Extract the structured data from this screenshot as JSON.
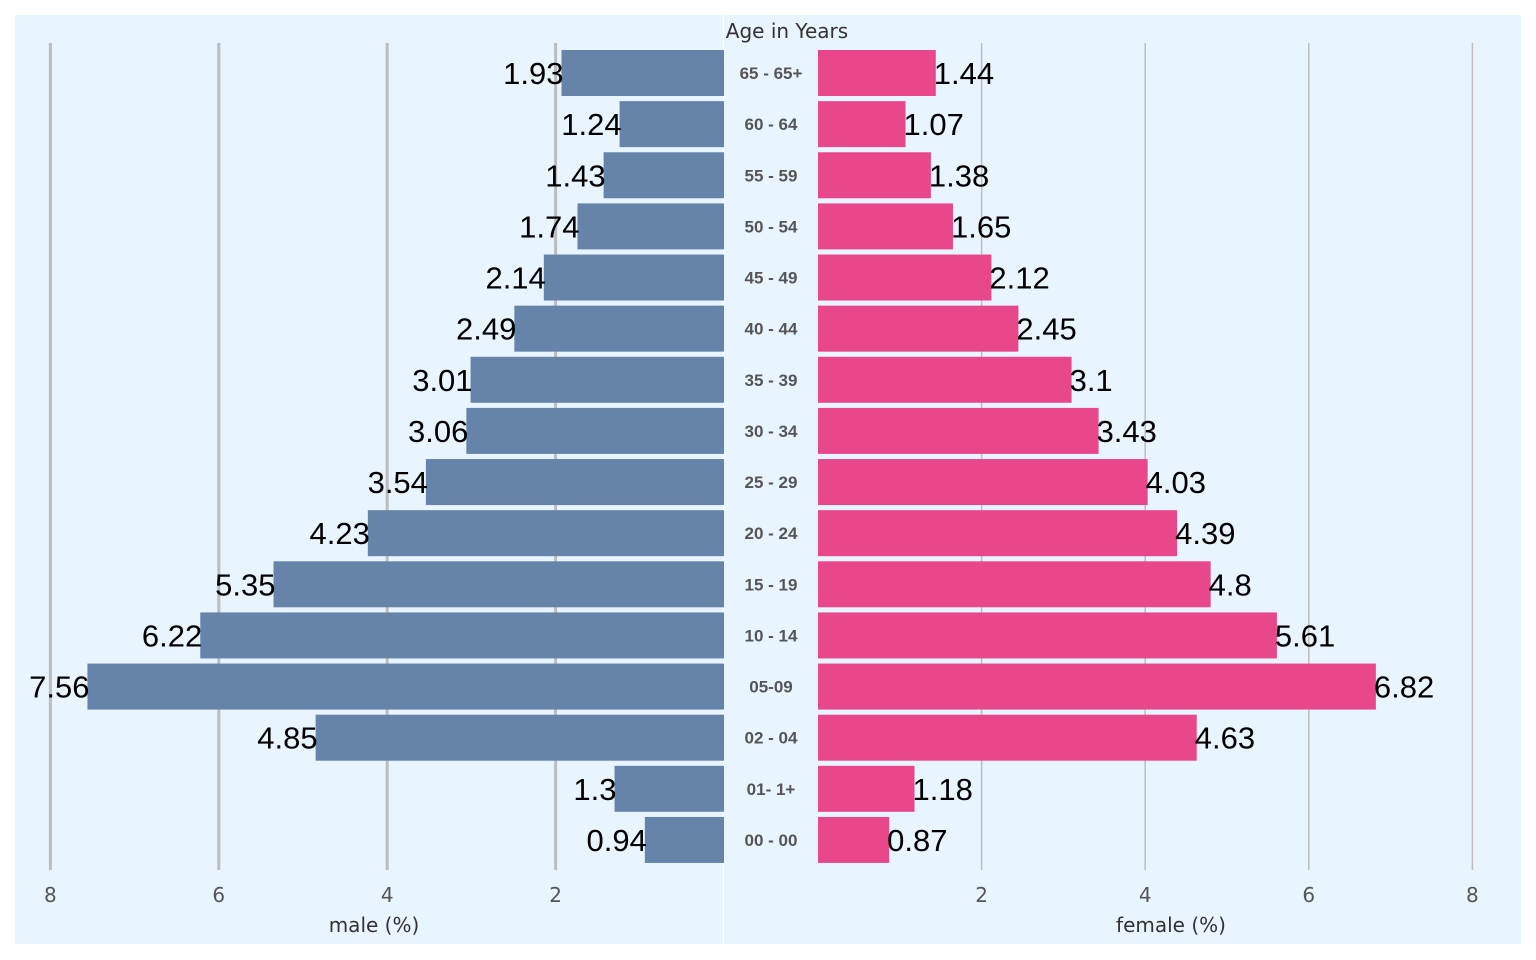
{
  "chart_data": {
    "type": "bar",
    "title": "Age in Years",
    "categories": [
      "65 - 65+",
      "60 - 64",
      "55 - 59",
      "50 - 54",
      "45 - 49",
      "40 - 44",
      "35 - 39",
      "30 - 34",
      "25 - 29",
      "20 - 24",
      "15 - 19",
      "10 - 14",
      "05-09",
      "02 - 04",
      "01- 1+",
      "00 - 00"
    ],
    "series": [
      {
        "name": "male (%)",
        "color": "#6684aa",
        "values": [
          1.93,
          1.24,
          1.43,
          1.74,
          2.14,
          2.49,
          3.01,
          3.06,
          3.54,
          4.23,
          5.35,
          6.22,
          7.56,
          4.85,
          1.3,
          0.94
        ]
      },
      {
        "name": "female (%)",
        "color": "#e8488a",
        "values": [
          1.44,
          1.07,
          1.38,
          1.65,
          2.12,
          2.45,
          3.1,
          3.43,
          4.03,
          4.39,
          4.8,
          5.61,
          6.82,
          4.63,
          1.18,
          0.87
        ]
      }
    ],
    "male_axis": {
      "label": "male (%)",
      "ticks": [
        8,
        6,
        4,
        2
      ],
      "xlim": [
        0,
        8
      ]
    },
    "female_axis": {
      "label": "female (%)",
      "ticks": [
        2,
        4,
        6,
        8
      ],
      "xlim": [
        0,
        8
      ]
    },
    "background_color": "#e8f4fe",
    "grid": true,
    "legend": "none"
  }
}
